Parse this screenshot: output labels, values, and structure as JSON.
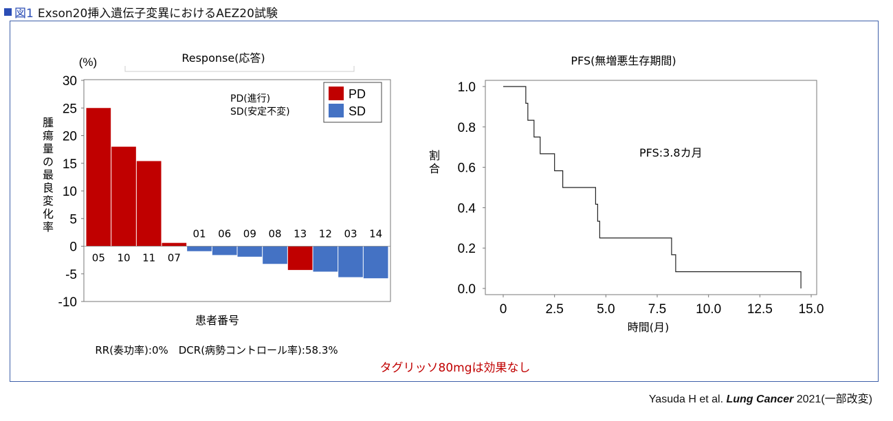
{
  "header": {
    "figure_label": "図1",
    "title": "Exson20挿入遺伝子変異におけるAEZ20試験"
  },
  "left_chart": {
    "response_label": "Response(応答)",
    "y_unit": "(%)",
    "y_axis_label": "腫瘍量の最良変化率",
    "x_axis_label": "患者番号",
    "legend_text_pd": "PD(進行)",
    "legend_text_sd": "SD(安定不変)",
    "stats_text": "RR(奏功率):0%　DCR(病勢コントロール率):58.3%",
    "conclusion": "タグリッソ80mgは効果なし",
    "colors": {
      "PD": "#c00000",
      "SD": "#4472c4",
      "conclusion": "#c00000"
    }
  },
  "right_chart": {
    "title": "PFS(無増悪生存期間)",
    "annotation": "PFS:3.8カ月",
    "y_axis_label": "割合",
    "x_axis_label": "時間(月)"
  },
  "citation": {
    "authors": "Yasuda H et al.",
    "journal": "Lung Cancer",
    "rest": "2021(一部改変)"
  },
  "chart_data": [
    {
      "type": "bar",
      "title": "",
      "ylabel": "腫瘍量の最良変化率",
      "xlabel": "患者番号",
      "ylim": [
        -10,
        30
      ],
      "yticks": [
        -10,
        -5,
        0,
        5,
        10,
        15,
        20,
        25,
        30
      ],
      "categories": [
        "05",
        "10",
        "11",
        "07",
        "01",
        "06",
        "09",
        "08",
        "13",
        "12",
        "03",
        "14"
      ],
      "values": [
        25,
        18,
        15.4,
        0.6,
        -0.9,
        -1.6,
        -1.9,
        -3.2,
        -4.3,
        -4.6,
        -5.6,
        -5.8
      ],
      "response": [
        "PD",
        "PD",
        "PD",
        "PD",
        "SD",
        "SD",
        "SD",
        "SD",
        "PD",
        "SD",
        "SD",
        "SD"
      ],
      "legend": [
        {
          "name": "PD",
          "color": "#c00000"
        },
        {
          "name": "SD",
          "color": "#4472c4"
        }
      ],
      "legend_position": "top-right"
    },
    {
      "type": "line",
      "title": "PFS(無増悪生存期間)",
      "xlabel": "時間(月)",
      "ylabel": "割合",
      "xlim": [
        0,
        15
      ],
      "ylim": [
        0,
        1
      ],
      "xticks": [
        "0",
        "2.5",
        "5.0",
        "7.5",
        "10.0",
        "12.5",
        "15.0"
      ],
      "yticks": [
        "0.0",
        "0.2",
        "0.4",
        "0.6",
        "0.8",
        "1.0"
      ],
      "step": true,
      "series": [
        {
          "x": [
            0,
            1.1,
            1.2,
            1.5,
            1.8,
            2.5,
            2.9,
            4.5,
            4.6,
            4.7,
            4.8,
            8.2,
            8.4,
            14.5
          ],
          "y": [
            1.0,
            0.917,
            0.833,
            0.75,
            0.667,
            0.583,
            0.5,
            0.417,
            0.333,
            0.25,
            0.25,
            0.167,
            0.083,
            0.083
          ]
        }
      ]
    }
  ]
}
